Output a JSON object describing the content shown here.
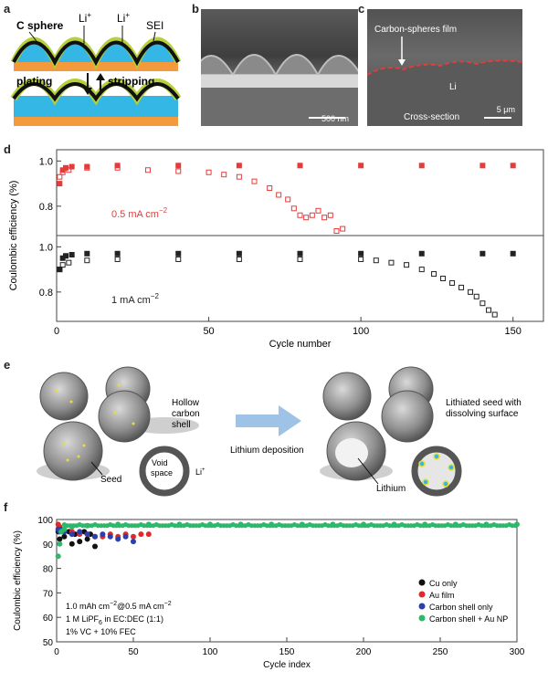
{
  "panels": {
    "a": "a",
    "b": "b",
    "c": "c",
    "d": "d",
    "e": "e",
    "f": "f"
  },
  "panel_a": {
    "c_sphere": "C sphere",
    "li1": "Li",
    "li2": "Li",
    "sup": "+",
    "sei": "SEI",
    "plating": "plating",
    "stripping": "stripping",
    "colors": {
      "yellow": "#f1e62f",
      "green": "#b6cf3b",
      "cyan": "#35b7e6",
      "orange": "#f39a3c",
      "black": "#111111"
    }
  },
  "panel_b": {
    "scale": "500 nm"
  },
  "panel_c": {
    "film": "Carbon-spheres film",
    "li": "Li",
    "cross": "Cross-section",
    "scale": "5 μm"
  },
  "panel_e": {
    "hollow": [
      "Hollow",
      "carbon",
      "shell"
    ],
    "void": [
      "Void",
      "space"
    ],
    "li_plus": "Li",
    "seed": "Seed",
    "deposition": "Lithium deposition",
    "lithiated": [
      "Lithiated seed with",
      "dissolving surface"
    ],
    "lithium": "Lithium"
  },
  "chart_data": [
    {
      "panel": "d",
      "type": "scatter",
      "ylabel": "Coulombic efficiency (%)",
      "xlabel": "Cycle number",
      "xlim": [
        0,
        160
      ],
      "xticks": [
        0,
        50,
        100,
        150
      ],
      "subplots": [
        {
          "label": "0.5 mA cm",
          "label_sup": "−2",
          "ylim": [
            0.67,
            1.05
          ],
          "yticks": [
            0.8,
            1.0
          ],
          "series": [
            {
              "marker": "filled-square",
              "color": "#e53b3b",
              "x": [
                1,
                2,
                3,
                5,
                10,
                20,
                40,
                60,
                80,
                100,
                120,
                140,
                150
              ],
              "y": [
                0.9,
                0.96,
                0.97,
                0.975,
                0.975,
                0.98,
                0.98,
                0.98,
                0.98,
                0.98,
                0.98,
                0.98,
                0.98
              ]
            },
            {
              "marker": "open-square",
              "color": "#e53b3b",
              "x": [
                1,
                2,
                4,
                10,
                20,
                30,
                40,
                50,
                55,
                60,
                65,
                70,
                73,
                76,
                78,
                80,
                82,
                84,
                86,
                88,
                90,
                92,
                94
              ],
              "y": [
                0.93,
                0.95,
                0.96,
                0.97,
                0.97,
                0.96,
                0.955,
                0.95,
                0.94,
                0.93,
                0.91,
                0.88,
                0.85,
                0.83,
                0.79,
                0.76,
                0.75,
                0.76,
                0.78,
                0.75,
                0.76,
                0.69,
                0.7
              ]
            }
          ]
        },
        {
          "label": "1 mA cm",
          "label_sup": "−2",
          "ylim": [
            0.67,
            1.05
          ],
          "yticks": [
            0.8,
            1.0
          ],
          "series": [
            {
              "marker": "filled-square",
              "color": "#222222",
              "x": [
                1,
                2,
                3,
                5,
                10,
                20,
                40,
                60,
                80,
                100,
                120,
                140,
                150
              ],
              "y": [
                0.9,
                0.95,
                0.96,
                0.965,
                0.97,
                0.97,
                0.97,
                0.97,
                0.97,
                0.97,
                0.97,
                0.97,
                0.97
              ]
            },
            {
              "marker": "open-square",
              "color": "#222222",
              "x": [
                1,
                2,
                4,
                10,
                20,
                40,
                60,
                80,
                100,
                105,
                110,
                115,
                120,
                124,
                127,
                130,
                133,
                136,
                138,
                140,
                142,
                144
              ],
              "y": [
                0.9,
                0.92,
                0.93,
                0.94,
                0.945,
                0.945,
                0.945,
                0.945,
                0.945,
                0.94,
                0.93,
                0.92,
                0.9,
                0.88,
                0.86,
                0.84,
                0.82,
                0.8,
                0.78,
                0.75,
                0.72,
                0.7
              ]
            }
          ]
        }
      ]
    },
    {
      "panel": "f",
      "type": "scatter",
      "ylabel": "Coulombic efficiency (%)",
      "xlabel": "Cycle index",
      "xlim": [
        0,
        300
      ],
      "ylim": [
        50,
        100
      ],
      "xticks": [
        0,
        50,
        100,
        150,
        200,
        250,
        300
      ],
      "yticks": [
        50,
        60,
        70,
        80,
        90,
        100
      ],
      "annotation": [
        "1.0 mAh cm",
        "@0.5 mA cm",
        "1 M LiPF",
        "6",
        " in EC:DEC (1:1)",
        "1% VC + 10% FEC"
      ],
      "annotation_sup": "−2",
      "legend_position": "bottom-right",
      "series": [
        {
          "name": "Cu only",
          "color": "#111111",
          "x": [
            1,
            2,
            3,
            5,
            8,
            10,
            12,
            15,
            18,
            20,
            22,
            25
          ],
          "y": [
            95,
            92,
            96,
            93,
            95,
            90,
            94,
            91,
            95,
            92,
            94,
            89
          ]
        },
        {
          "name": "Au film",
          "color": "#e02a2a",
          "x": [
            1,
            2,
            3,
            5,
            10,
            15,
            20,
            25,
            30,
            35,
            40,
            45,
            50,
            55,
            60
          ],
          "y": [
            98,
            97,
            96,
            95,
            95,
            94,
            94,
            93,
            93,
            94,
            93,
            94,
            93,
            94,
            94
          ]
        },
        {
          "name": "Carbon shell only",
          "color": "#2a3fb0",
          "x": [
            1,
            2,
            3,
            5,
            10,
            15,
            20,
            25,
            30,
            35,
            40,
            45,
            50
          ],
          "y": [
            96,
            95,
            96,
            95,
            94,
            95,
            94,
            93,
            94,
            93,
            92,
            93,
            91
          ]
        },
        {
          "name": "Carbon shell + Au NP",
          "color": "#2db86a",
          "x": [
            1,
            2,
            3,
            5,
            10,
            20,
            40,
            60,
            80,
            100,
            120,
            140,
            160,
            180,
            200,
            220,
            240,
            260,
            280,
            300
          ],
          "y": [
            85,
            90,
            95,
            96,
            97,
            97.5,
            98,
            98,
            98,
            98,
            98,
            98,
            98,
            98,
            98,
            98,
            98,
            98,
            98,
            98
          ]
        }
      ]
    }
  ]
}
